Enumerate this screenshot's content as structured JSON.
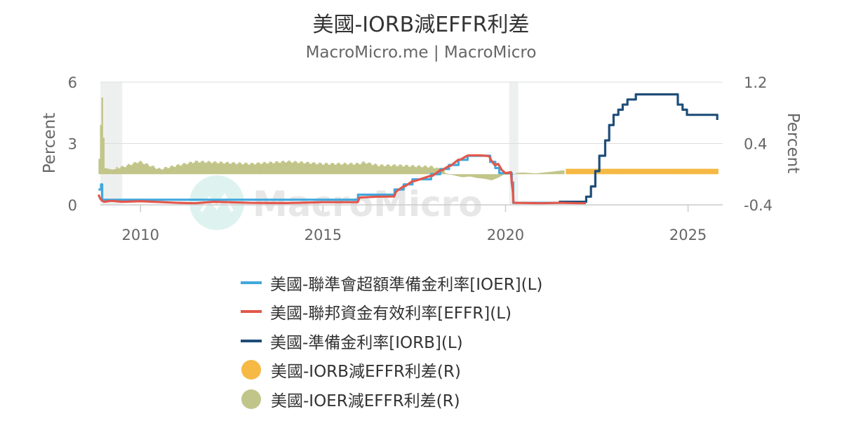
{
  "chart_data": {
    "type": "line",
    "title": "美國-IORB減EFFR利差",
    "subtitle": "MacroMicro.me | MacroMicro",
    "watermark": "MacroMicro",
    "y_left": {
      "label": "Percent",
      "range": [
        0,
        6
      ],
      "ticks": [
        "6",
        "3",
        "0"
      ]
    },
    "y_right": {
      "label": "Percent",
      "range": [
        -0.4,
        1.2
      ],
      "ticks": [
        "1.2",
        "0.4",
        "-0.4"
      ]
    },
    "x_axis": {
      "range": [
        2008.9,
        2025.95
      ],
      "ticks": [
        "2010",
        "2015",
        "2020",
        "2025"
      ]
    },
    "shaded_periods": [
      [
        2008.9,
        2009.5
      ],
      [
        2020.1,
        2020.35
      ]
    ],
    "series": [
      {
        "name": "美國-聯準會超額準備金利率[IOER](L)",
        "axis": "left",
        "color": "#41a8dd",
        "kind": "step",
        "x": [
          2008.85,
          2008.92,
          2008.95,
          2015.96,
          2016.96,
          2017.21,
          2017.45,
          2017.96,
          2018.21,
          2018.45,
          2018.71,
          2018.96,
          2019.58,
          2019.72,
          2019.83,
          2020.17,
          2020.21,
          2021.46
        ],
        "y": [
          0.75,
          1.0,
          0.25,
          0.5,
          0.75,
          1.0,
          1.25,
          1.5,
          1.75,
          1.95,
          2.2,
          2.4,
          2.1,
          1.8,
          1.55,
          1.1,
          0.1,
          0.15
        ]
      },
      {
        "name": "美國-聯邦資金有效利率[EFFR](L)",
        "axis": "left",
        "color": "#e2574c",
        "kind": "line",
        "x": [
          2008.85,
          2008.9,
          2008.95,
          2009.0,
          2009.2,
          2009.5,
          2010.0,
          2011.0,
          2011.5,
          2012.0,
          2013.0,
          2014.0,
          2015.0,
          2015.95,
          2016.0,
          2016.5,
          2016.95,
          2017.0,
          2017.2,
          2017.25,
          2017.45,
          2017.5,
          2017.95,
          2018.0,
          2018.2,
          2018.25,
          2018.45,
          2018.5,
          2018.7,
          2018.75,
          2018.95,
          2019.0,
          2019.3,
          2019.45,
          2019.55,
          2019.6,
          2019.7,
          2019.8,
          2019.9,
          2020.0,
          2020.15,
          2020.17,
          2020.2,
          2020.22,
          2021.0,
          2021.5,
          2022.0,
          2022.2
        ],
        "y": [
          0.5,
          0.3,
          0.2,
          0.15,
          0.2,
          0.15,
          0.18,
          0.1,
          0.08,
          0.15,
          0.1,
          0.09,
          0.13,
          0.13,
          0.36,
          0.4,
          0.41,
          0.65,
          0.9,
          0.91,
          1.16,
          1.16,
          1.42,
          1.42,
          1.68,
          1.68,
          1.9,
          1.91,
          2.2,
          2.2,
          2.4,
          2.42,
          2.42,
          2.4,
          2.38,
          2.2,
          1.95,
          2.0,
          1.7,
          1.55,
          1.6,
          1.1,
          0.65,
          0.1,
          0.08,
          0.1,
          0.08,
          0.08
        ]
      },
      {
        "name": "美國-準備金利率[IORB](L)",
        "axis": "left",
        "color": "#1f4e79",
        "kind": "step",
        "x": [
          2021.46,
          2022.21,
          2022.34,
          2022.46,
          2022.57,
          2022.73,
          2022.84,
          2022.96,
          2023.09,
          2023.21,
          2023.34,
          2023.57,
          2024.72,
          2024.85,
          2024.97,
          2025.7,
          2025.8
        ],
        "y": [
          0.15,
          0.4,
          0.9,
          1.65,
          2.4,
          3.15,
          3.9,
          4.4,
          4.65,
          4.9,
          5.15,
          5.4,
          4.9,
          4.65,
          4.4,
          4.4,
          4.15
        ]
      },
      {
        "name": "美國-IORB減EFFR利差(R)",
        "axis": "right",
        "color": "#f5b944",
        "kind": "bars",
        "x_range": [
          2021.65,
          2025.8
        ],
        "value": 0.07
      },
      {
        "name": "美國-IOER減EFFR利差(R)",
        "axis": "right",
        "color": "#c2c589",
        "kind": "bars",
        "x_range": [
          2008.85,
          2021.6
        ],
        "points": [
          [
            2008.85,
            0.2
          ],
          [
            2008.88,
            0.55
          ],
          [
            2008.93,
            1.0
          ],
          [
            2009.0,
            0.08
          ],
          [
            2009.2,
            0.06
          ],
          [
            2009.5,
            0.08
          ],
          [
            2009.95,
            0.15
          ],
          [
            2010.5,
            0.05
          ],
          [
            2011.0,
            0.1
          ],
          [
            2011.5,
            0.15
          ],
          [
            2012.0,
            0.14
          ],
          [
            2013.0,
            0.12
          ],
          [
            2014.0,
            0.15
          ],
          [
            2015.0,
            0.12
          ],
          [
            2015.95,
            0.12
          ],
          [
            2016.1,
            0.14
          ],
          [
            2016.5,
            0.1
          ],
          [
            2017.0,
            0.1
          ],
          [
            2017.5,
            0.09
          ],
          [
            2018.0,
            0.08
          ],
          [
            2018.3,
            0.02
          ],
          [
            2018.45,
            0.0
          ],
          [
            2018.6,
            -0.02
          ],
          [
            2018.8,
            -0.04
          ],
          [
            2019.0,
            -0.03
          ],
          [
            2019.2,
            -0.05
          ],
          [
            2019.4,
            -0.06
          ],
          [
            2019.6,
            -0.08
          ],
          [
            2019.7,
            -0.06
          ],
          [
            2019.8,
            -0.04
          ],
          [
            2019.95,
            0.0
          ],
          [
            2020.2,
            0.0
          ],
          [
            2020.3,
            0.02
          ],
          [
            2020.5,
            0.02
          ],
          [
            2020.8,
            0.01
          ],
          [
            2021.2,
            0.03
          ],
          [
            2021.55,
            0.05
          ]
        ]
      }
    ]
  },
  "legend": [
    {
      "label": "美國-聯準會超額準備金利率[IOER](L)",
      "type": "line",
      "color": "#41a8dd"
    },
    {
      "label": "美國-聯邦資金有效利率[EFFR](L)",
      "type": "line",
      "color": "#e2574c"
    },
    {
      "label": "美國-準備金利率[IORB](L)",
      "type": "line",
      "color": "#1f4e79"
    },
    {
      "label": "美國-IORB減EFFR利差(R)",
      "type": "dot",
      "color": "#f5b944"
    },
    {
      "label": "美國-IOER減EFFR利差(R)",
      "type": "dot",
      "color": "#c2c589"
    }
  ]
}
